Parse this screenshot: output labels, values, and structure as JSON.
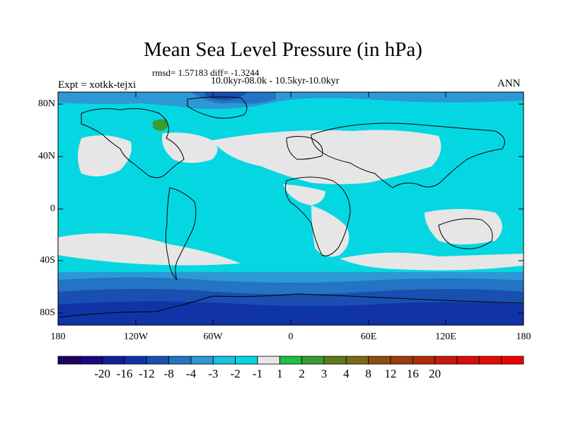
{
  "title": "Mean Sea Level Pressure (in hPa)",
  "stats": "rmsd= 1.57183 diff= -1.3244",
  "period": "10.0kyr-08.0k - 10.5kyr-10.0kyr",
  "experiment": "Expt = xotkk-tejxi",
  "season": "ANN",
  "axes": {
    "lat_labels": [
      "80N",
      "40N",
      "0",
      "40S",
      "80S"
    ],
    "lon_labels": [
      "180",
      "120W",
      "60W",
      "0",
      "60E",
      "120E",
      "180"
    ]
  },
  "colorbar": {
    "labels": [
      "-20",
      "-16",
      "-12",
      "-8",
      "-4",
      "-3",
      "-2",
      "-1",
      "1",
      "2",
      "3",
      "4",
      "8",
      "12",
      "16",
      "20"
    ],
    "colors": [
      "#1f005f",
      "#170a80",
      "#0d1f99",
      "#1034a8",
      "#1a4fb2",
      "#2374c2",
      "#2c98d6",
      "#17c3e0",
      "#05d7e2",
      "#e6e6e6",
      "#1fbf46",
      "#3a9c32",
      "#5e7a1b",
      "#7d6a16",
      "#8c4f10",
      "#9c3b0d",
      "#b32a0a",
      "#c81a07",
      "#d80f05",
      "#e80a05",
      "#f00000"
    ]
  },
  "palette": {
    "ocean_main": "#05d7e2",
    "land_neutral": "#e6e6e6",
    "southern_1": "#2c98d6",
    "southern_2": "#2374c2",
    "southern_3": "#1a4fb2",
    "polar": "#1034a8",
    "positive_green": "#3a9c32"
  }
}
